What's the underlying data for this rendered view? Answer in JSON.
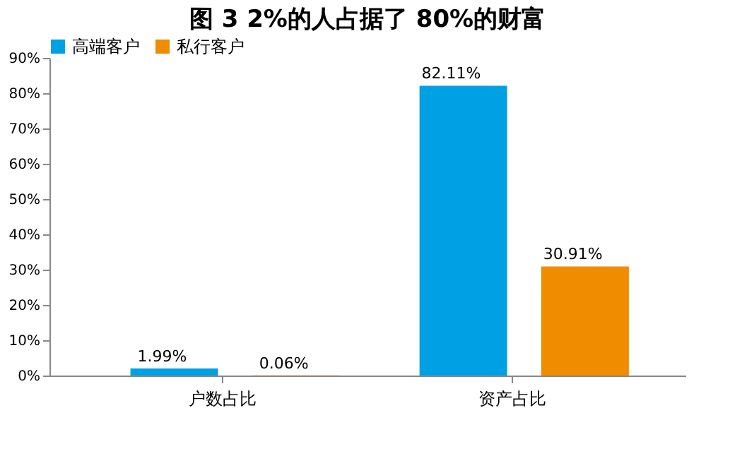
{
  "chart_data": {
    "type": "bar",
    "title": "图 3 2%的人占据了 80%的财富",
    "categories": [
      "户数占比",
      "资产占比"
    ],
    "series": [
      {
        "name": "高端客户",
        "color": "#00a1e4",
        "values": [
          1.99,
          82.11
        ],
        "value_labels": [
          "1.99%",
          "82.11%"
        ]
      },
      {
        "name": "私行客户",
        "color": "#f08c00",
        "values": [
          0.06,
          30.91
        ],
        "value_labels": [
          "0.06%",
          "30.91%"
        ]
      }
    ],
    "ylim": [
      0,
      90
    ],
    "yticks": [
      {
        "value": 0,
        "label": "0%"
      },
      {
        "value": 10,
        "label": "10%"
      },
      {
        "value": 20,
        "label": "20%"
      },
      {
        "value": 30,
        "label": "30%"
      },
      {
        "value": 40,
        "label": "40%"
      },
      {
        "value": 50,
        "label": "50%"
      },
      {
        "value": 60,
        "label": "60%"
      },
      {
        "value": 70,
        "label": "70%"
      },
      {
        "value": 80,
        "label": "80%"
      },
      {
        "value": 90,
        "label": "90%"
      }
    ],
    "grid": false,
    "legend": "top"
  }
}
